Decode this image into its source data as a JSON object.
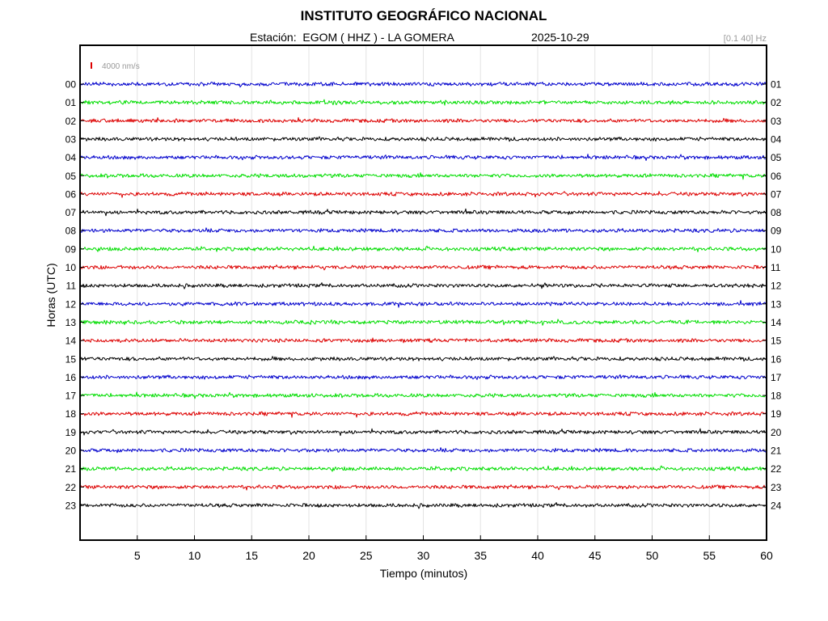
{
  "header": {
    "title": "INSTITUTO GEOGRÁFICO NACIONAL",
    "station_label": "Estación:  EGOM ( HHZ ) - LA GOMERA",
    "date": "2025-10-29",
    "filter": "[0.1 40] Hz"
  },
  "chart_data": {
    "type": "line",
    "title": "INSTITUTO GEOGRÁFICO NACIONAL",
    "xlabel": "Tiempo (minutos)",
    "ylabel": "Horas (UTC)",
    "xlim": [
      0,
      60
    ],
    "x_ticks": [
      5,
      10,
      15,
      20,
      25,
      30,
      35,
      40,
      45,
      50,
      55,
      60
    ],
    "left_labels": [
      "00",
      "01",
      "02",
      "03",
      "04",
      "05",
      "06",
      "07",
      "08",
      "09",
      "10",
      "11",
      "12",
      "13",
      "14",
      "15",
      "16",
      "17",
      "18",
      "19",
      "20",
      "21",
      "22",
      "23"
    ],
    "right_labels": [
      "01",
      "02",
      "03",
      "04",
      "05",
      "06",
      "07",
      "08",
      "09",
      "10",
      "11",
      "12",
      "13",
      "14",
      "15",
      "16",
      "17",
      "18",
      "19",
      "20",
      "21",
      "22",
      "23",
      "24"
    ],
    "trace_colors": [
      "#0000cc",
      "#00dd00",
      "#dd0000",
      "#000000"
    ],
    "scale_label": "4000 nm/s",
    "scale_color": "#dd0000",
    "grid": true
  }
}
